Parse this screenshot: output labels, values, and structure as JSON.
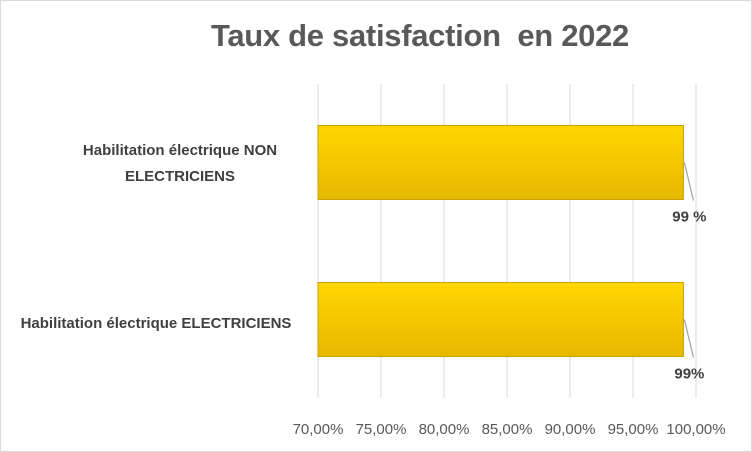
{
  "chart_data": {
    "type": "bar",
    "orientation": "horizontal",
    "title": "Taux de satisfaction  en 2022",
    "categories": [
      "Habilitation électrique NON ELECTRICIENS",
      "Habilitation électrique ELECTRICIENS"
    ],
    "values": [
      0.99,
      0.99
    ],
    "data_labels": [
      "99 %",
      "99%"
    ],
    "x_ticks": [
      "70,00%",
      "75,00%",
      "80,00%",
      "85,00%",
      "90,00%",
      "95,00%",
      "100,00%"
    ],
    "xlim": [
      0.7,
      1.0
    ],
    "grid": "vertical",
    "legend": "none",
    "colors": {
      "bar_top": "#ffd700",
      "bar_bottom": "#e6b800",
      "bar_edge": "#c9a000",
      "grid": "#d9d9d9",
      "text": "#595959"
    }
  }
}
